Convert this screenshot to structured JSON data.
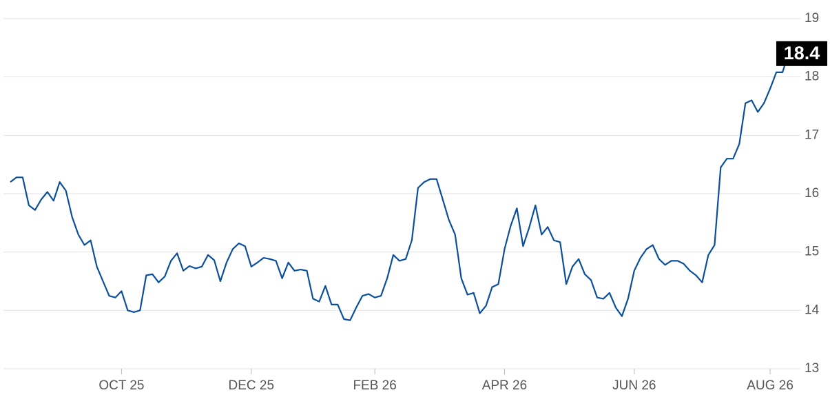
{
  "chart_data": {
    "type": "line",
    "categories": [
      null,
      null,
      null,
      null,
      null,
      null,
      null,
      null,
      null,
      null,
      null,
      null,
      null,
      null,
      null,
      null,
      null,
      null,
      "OCT 25",
      null,
      null,
      null,
      null,
      null,
      null,
      null,
      null,
      null,
      null,
      null,
      null,
      null,
      null,
      null,
      null,
      null,
      null,
      null,
      null,
      "DEC 25",
      null,
      null,
      null,
      null,
      null,
      null,
      null,
      null,
      null,
      null,
      null,
      null,
      null,
      null,
      null,
      null,
      null,
      null,
      null,
      "FEB 26",
      null,
      null,
      null,
      null,
      null,
      null,
      null,
      null,
      null,
      null,
      null,
      null,
      null,
      null,
      null,
      null,
      null,
      null,
      null,
      null,
      "APR 26",
      null,
      null,
      null,
      null,
      null,
      null,
      null,
      null,
      null,
      null,
      null,
      null,
      null,
      null,
      null,
      null,
      null,
      null,
      null,
      null,
      "JUN 26",
      null,
      null,
      null,
      null,
      null,
      null,
      null,
      null,
      null,
      null,
      null,
      null,
      null,
      null,
      null,
      null,
      null,
      null,
      null,
      null,
      null,
      "AUG 26",
      null,
      null,
      null
    ],
    "values": [
      16.2,
      16.28,
      16.28,
      15.8,
      15.72,
      15.9,
      16.03,
      15.88,
      16.2,
      16.05,
      15.6,
      15.3,
      15.12,
      15.2,
      14.75,
      14.5,
      14.25,
      14.22,
      14.33,
      14.0,
      13.97,
      14.0,
      14.6,
      14.62,
      14.48,
      14.58,
      14.85,
      14.98,
      14.68,
      14.76,
      14.72,
      14.75,
      14.95,
      14.86,
      14.5,
      14.82,
      15.05,
      15.15,
      15.1,
      14.75,
      14.82,
      14.9,
      14.88,
      14.85,
      14.55,
      14.82,
      14.68,
      14.7,
      14.68,
      14.2,
      14.15,
      14.42,
      14.1,
      14.1,
      13.85,
      13.83,
      14.05,
      14.25,
      14.28,
      14.22,
      14.25,
      14.55,
      14.95,
      14.85,
      14.88,
      15.2,
      16.1,
      16.2,
      16.25,
      16.25,
      15.9,
      15.55,
      15.3,
      14.55,
      14.27,
      14.3,
      13.95,
      14.08,
      14.4,
      14.45,
      15.05,
      15.45,
      15.75,
      15.1,
      15.42,
      15.8,
      15.3,
      15.43,
      15.2,
      15.17,
      14.45,
      14.75,
      14.88,
      14.62,
      14.52,
      14.22,
      14.2,
      14.3,
      14.05,
      13.9,
      14.2,
      14.68,
      14.9,
      15.05,
      15.12,
      14.88,
      14.78,
      14.85,
      14.85,
      14.8,
      14.68,
      14.6,
      14.48,
      14.95,
      15.12,
      16.45,
      16.6,
      16.6,
      16.85,
      17.55,
      17.6,
      17.4,
      17.55,
      17.8,
      18.08,
      18.08,
      18.4
    ],
    "color": "#0b4f9c",
    "ylim": [
      13,
      19
    ],
    "yticks": [
      13,
      14,
      15,
      16,
      17,
      18,
      19
    ],
    "grid": true
  }
}
